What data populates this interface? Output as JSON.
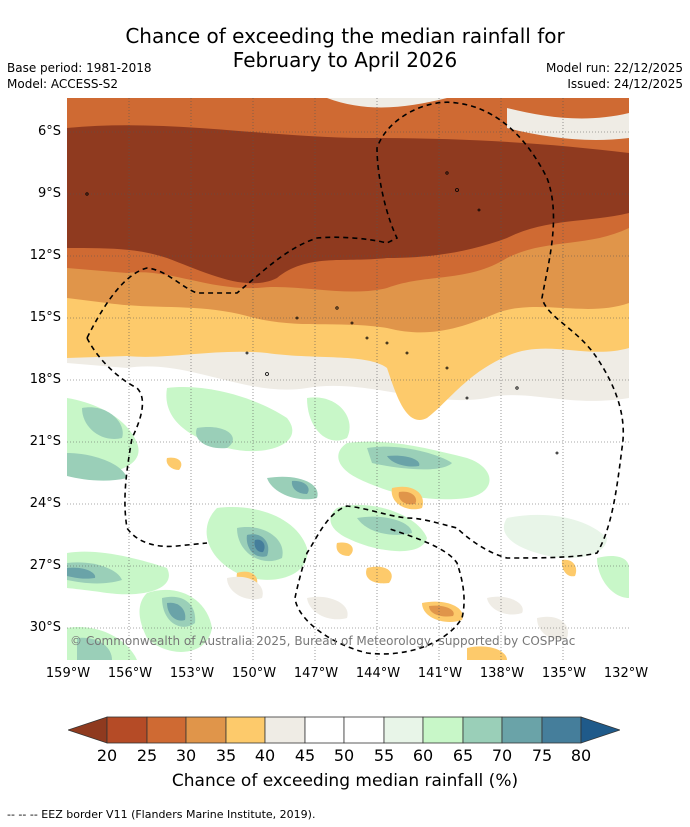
{
  "title_line1": "Chance of exceeding the median rainfall for",
  "title_line2": "February to April 2026",
  "base_period": "Base period: 1981-2018",
  "model": "Model: ACCESS-S2",
  "model_run": "Model run: 22/12/2025",
  "issued": "Issued: 24/12/2025",
  "lat_labels": [
    "6°S",
    "9°S",
    "12°S",
    "15°S",
    "18°S",
    "21°S",
    "24°S",
    "27°S",
    "30°S"
  ],
  "lon_labels": [
    "159°W",
    "156°W",
    "153°W",
    "150°W",
    "147°W",
    "144°W",
    "141°W",
    "138°W",
    "135°W",
    "132°W"
  ],
  "copyright": "© Commonwealth of Australia 2025, Bureau of Meteorology, supported by COSPPac",
  "colorbar": {
    "title": "Chance of exceeding median rainfall (%)",
    "ticks": [
      "20",
      "25",
      "30",
      "35",
      "40",
      "45",
      "50",
      "55",
      "60",
      "65",
      "70",
      "75",
      "80"
    ],
    "colors": [
      "#8f3a1f",
      "#b54b26",
      "#cf6a33",
      "#e0954a",
      "#fdca6b",
      "#efece5",
      "#ffffff",
      "#ffffff",
      "#e8f5e8",
      "#c8f7c8",
      "#9acfb8",
      "#6aa3a8",
      "#457e9b",
      "#1f5a8a"
    ]
  },
  "footer": "-- -- -- EEZ border V11 (Flanders Marine Institute, 2019)."
}
